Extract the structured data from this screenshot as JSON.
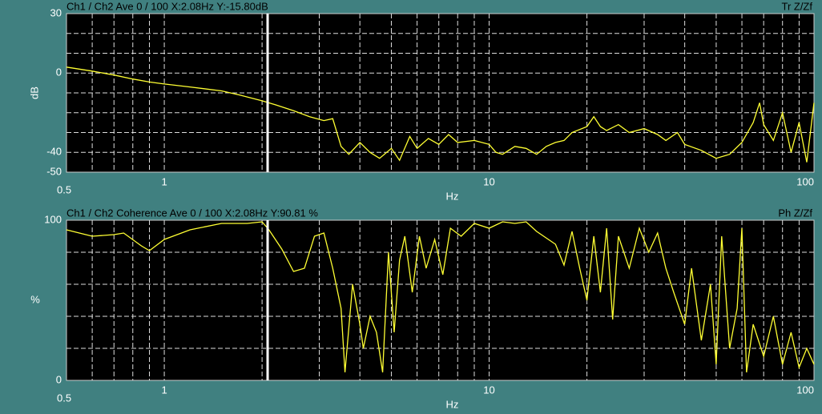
{
  "chart_data": [
    {
      "type": "line",
      "title": "Ch1 / Ch2  Ave 0 / 100  X:2.08Hz  Y:-15.80dB",
      "corner_label": "Tr Z/Zf",
      "ylabel": "dB",
      "xlabel": "Hz",
      "xlog": true,
      "xlim": [
        0.5,
        100
      ],
      "ylim": [
        -50,
        30
      ],
      "xticks": [
        0.5,
        1,
        10,
        100
      ],
      "yticks": [
        30,
        0,
        -40,
        -50
      ],
      "xgrid": [
        0.6,
        0.7,
        0.8,
        0.9,
        1,
        2,
        3,
        4,
        5,
        6,
        7,
        8,
        9,
        10,
        20,
        30,
        40,
        50,
        60,
        70,
        80,
        90
      ],
      "ygrid": [
        20,
        10,
        0,
        -10,
        -20,
        -30,
        -40
      ],
      "cursor_x": 2.08,
      "x": [
        0.5,
        0.6,
        0.7,
        0.8,
        0.9,
        1,
        1.2,
        1.5,
        1.7,
        2,
        2.2,
        2.5,
        2.8,
        3.1,
        3.3,
        3.5,
        3.7,
        4,
        4.3,
        4.6,
        5,
        5.3,
        5.7,
        6,
        6.5,
        7,
        7.5,
        8,
        9,
        10,
        10.5,
        11,
        12,
        13,
        14,
        15,
        16,
        17,
        18,
        20,
        21,
        22,
        23,
        25,
        27,
        30,
        33,
        35,
        38,
        40,
        45,
        50,
        55,
        60,
        65,
        68,
        70,
        75,
        80,
        85,
        90,
        95,
        100
      ],
      "series": [
        {
          "color": "#ffff33",
          "values": [
            3,
            1,
            -1,
            -3,
            -4.5,
            -5.5,
            -7,
            -9,
            -11,
            -14,
            -16,
            -19,
            -22,
            -24,
            -23,
            -37,
            -41,
            -35,
            -40,
            -43,
            -38,
            -44,
            -32,
            -38,
            -33,
            -36,
            -31,
            -35,
            -34,
            -36,
            -40,
            -41,
            -37,
            -38,
            -41,
            -37,
            -35,
            -34,
            -30,
            -27,
            -22,
            -27,
            -29,
            -26,
            -30,
            -28,
            -31,
            -34,
            -30,
            -36,
            -39,
            -43,
            -41,
            -35,
            -25,
            -15,
            -26,
            -34,
            -20,
            -40,
            -25,
            -45,
            -15
          ]
        }
      ]
    },
    {
      "type": "line",
      "title": "Ch1 / Ch2  Coherence Ave 0 / 100  X:2.08Hz  Y:90.81 %",
      "corner_label": "Ph Z/Zf",
      "ylabel": "%",
      "xlabel": "Hz",
      "xlog": true,
      "xlim": [
        0.5,
        100
      ],
      "ylim": [
        0,
        100
      ],
      "xticks": [
        0.5,
        1,
        10,
        100
      ],
      "yticks": [
        100,
        0
      ],
      "xgrid": [
        0.6,
        0.7,
        0.8,
        0.9,
        1,
        2,
        3,
        4,
        5,
        6,
        7,
        8,
        9,
        10,
        20,
        30,
        40,
        50,
        60,
        70,
        80,
        90
      ],
      "ygrid": [
        20,
        40,
        60,
        80
      ],
      "cursor_x": 2.08,
      "x": [
        0.5,
        0.6,
        0.7,
        0.75,
        0.85,
        0.9,
        1,
        1.2,
        1.5,
        1.8,
        2,
        2.1,
        2.3,
        2.5,
        2.7,
        2.9,
        3.1,
        3.3,
        3.5,
        3.6,
        3.8,
        4,
        4.1,
        4.3,
        4.5,
        4.7,
        4.9,
        5.1,
        5.3,
        5.5,
        5.8,
        6.1,
        6.4,
        6.8,
        7.2,
        7.6,
        8.2,
        9,
        10,
        11,
        12,
        13,
        14,
        16,
        17,
        18,
        19,
        20,
        21,
        22,
        23,
        24,
        25,
        27,
        29,
        31,
        33,
        35,
        37,
        40,
        42,
        45,
        48,
        50,
        52,
        55,
        58,
        60,
        62,
        65,
        70,
        75,
        80,
        85,
        90,
        95,
        100
      ],
      "series": [
        {
          "color": "#ffff33",
          "values": [
            94,
            90,
            91,
            92,
            84,
            81,
            88,
            94,
            98,
            98,
            99,
            94,
            82,
            68,
            70,
            90,
            92,
            70,
            45,
            5,
            60,
            35,
            20,
            40,
            30,
            5,
            80,
            30,
            75,
            90,
            55,
            90,
            70,
            88,
            66,
            95,
            90,
            98,
            95,
            99,
            98,
            99,
            93,
            85,
            72,
            93,
            70,
            50,
            90,
            55,
            95,
            38,
            90,
            70,
            95,
            80,
            92,
            70,
            55,
            35,
            70,
            25,
            60,
            10,
            90,
            20,
            45,
            95,
            5,
            35,
            15,
            40,
            10,
            30,
            8,
            20,
            10
          ]
        }
      ]
    }
  ]
}
